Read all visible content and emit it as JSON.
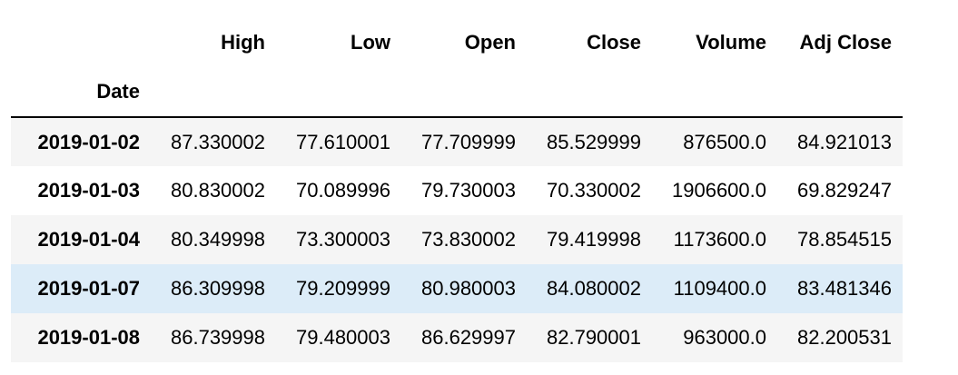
{
  "table": {
    "columns": [
      "High",
      "Low",
      "Open",
      "Close",
      "Volume",
      "Adj Close"
    ],
    "index_name": "Date",
    "rows": [
      {
        "date": "2019-01-02",
        "values": [
          "87.330002",
          "77.610001",
          "77.709999",
          "85.529999",
          "876500.0",
          "84.921013"
        ]
      },
      {
        "date": "2019-01-03",
        "values": [
          "80.830002",
          "70.089996",
          "79.730003",
          "70.330002",
          "1906600.0",
          "69.829247"
        ]
      },
      {
        "date": "2019-01-04",
        "values": [
          "80.349998",
          "73.300003",
          "73.830002",
          "79.419998",
          "1173600.0",
          "78.854515"
        ]
      },
      {
        "date": "2019-01-07",
        "values": [
          "86.309998",
          "79.209999",
          "80.980003",
          "84.080002",
          "1109400.0",
          "83.481346"
        ]
      },
      {
        "date": "2019-01-08",
        "values": [
          "86.739998",
          "79.480003",
          "86.629997",
          "82.790001",
          "963000.0",
          "82.200531"
        ]
      }
    ],
    "highlighted_row": 3,
    "colors": {
      "stripe": "#f5f5f5",
      "hover": "#dcecf8",
      "header_rule": "#000000"
    }
  }
}
